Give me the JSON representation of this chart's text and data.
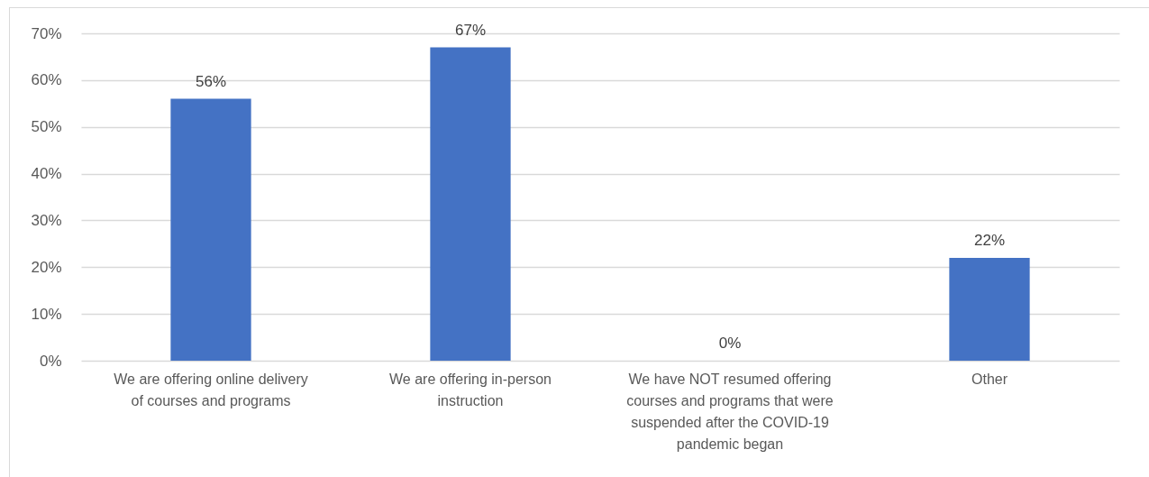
{
  "chart_data": {
    "type": "bar",
    "categories": [
      "We are offering online delivery of courses and programs",
      "We are offering in-person instruction",
      "We have NOT resumed offering courses and programs that were suspended after the COVID-19 pandemic began",
      "Other"
    ],
    "values": [
      56,
      67,
      0,
      22
    ],
    "value_labels": [
      "56%",
      "67%",
      "0%",
      "22%"
    ],
    "color": "#4472c4",
    "ylim": [
      0,
      70
    ],
    "yticks": [
      {
        "value": 0,
        "label": "0%"
      },
      {
        "value": 10,
        "label": "10%"
      },
      {
        "value": 20,
        "label": "20%"
      },
      {
        "value": 30,
        "label": "30%"
      },
      {
        "value": 40,
        "label": "40%"
      },
      {
        "value": 50,
        "label": "50%"
      },
      {
        "value": 60,
        "label": "60%"
      },
      {
        "value": 70,
        "label": "70%"
      }
    ],
    "grid": "y"
  }
}
